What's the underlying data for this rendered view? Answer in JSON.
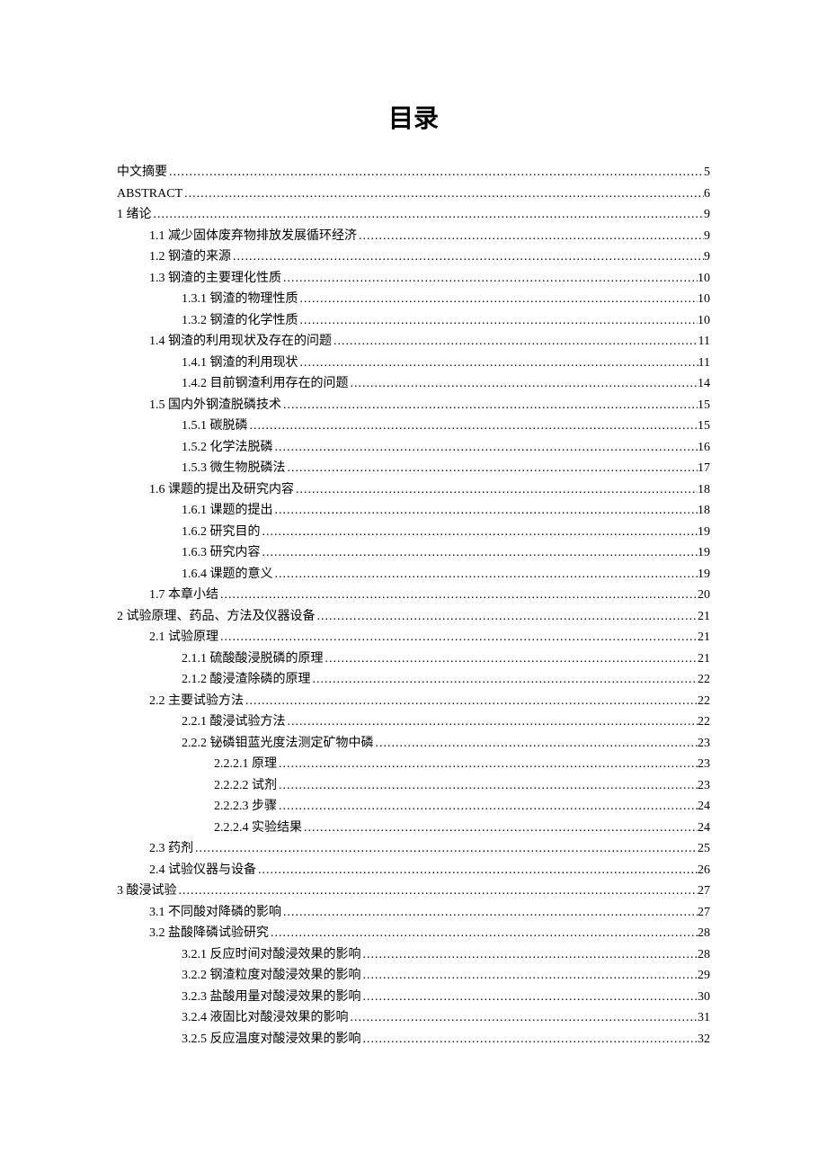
{
  "title": "目录",
  "text_color": "#000000",
  "background_color": "#ffffff",
  "title_fontsize": 28,
  "entry_fontsize": 14,
  "line_height": 23.5,
  "entries": [
    {
      "level": 0,
      "label": "中文摘要",
      "page": "5"
    },
    {
      "level": 0,
      "label": "ABSTRACT",
      "page": "6"
    },
    {
      "level": 0,
      "label": "1  绪论",
      "page": "9"
    },
    {
      "level": 1,
      "label": "1.1  减少固体废弃物排放发展循环经济",
      "page": "9"
    },
    {
      "level": 1,
      "label": "1.2  钢渣的来源",
      "page": "9"
    },
    {
      "level": 1,
      "label": "1.3  钢渣的主要理化性质",
      "page": "10"
    },
    {
      "level": 2,
      "label": "1.3.1  钢渣的物理性质",
      "page": "10"
    },
    {
      "level": 2,
      "label": "1.3.2  钢渣的化学性质",
      "page": "10"
    },
    {
      "level": 1,
      "label": "1.4  钢渣的利用现状及存在的问题",
      "page": "11"
    },
    {
      "level": 2,
      "label": "1.4.1  钢渣的利用现状",
      "page": "11"
    },
    {
      "level": 2,
      "label": "1.4.2  目前钢渣利用存在的问题",
      "page": "14"
    },
    {
      "level": 1,
      "label": "1.5  国内外钢渣脱磷技术",
      "page": "15"
    },
    {
      "level": 2,
      "label": "1.5.1  碳脱磷",
      "page": "15"
    },
    {
      "level": 2,
      "label": "1.5.2  化学法脱磷",
      "page": "16"
    },
    {
      "level": 2,
      "label": "1.5.3  微生物脱磷法",
      "page": "17"
    },
    {
      "level": 1,
      "label": "1.6   课题的提出及研究内容",
      "page": "18"
    },
    {
      "level": 2,
      "label": "1.6.1  课题的提出",
      "page": "18"
    },
    {
      "level": 2,
      "label": "1.6.2  研究目的",
      "page": "19"
    },
    {
      "level": 2,
      "label": "1.6.3  研究内容",
      "page": "19"
    },
    {
      "level": 2,
      "label": "1.6.4  课题的意义",
      "page": "19"
    },
    {
      "level": 1,
      "label": "1.7  本章小结",
      "page": "20"
    },
    {
      "level": 0,
      "label": "2  试验原理、药品、方法及仪器设备",
      "page": "21"
    },
    {
      "level": 1,
      "label": "2.1  试验原理",
      "page": "21"
    },
    {
      "level": 2,
      "label": "2.1.1  硫酸酸浸脱磷的原理",
      "page": "21"
    },
    {
      "level": 2,
      "label": "2.1.2  酸浸渣除磷的原理",
      "page": "22"
    },
    {
      "level": 1,
      "label": "2.2  主要试验方法",
      "page": "22"
    },
    {
      "level": 2,
      "label": "2.2.1  酸浸试验方法",
      "page": "22"
    },
    {
      "level": 2,
      "label": "2.2.2  铋磷钼蓝光度法测定矿物中磷",
      "page": "23"
    },
    {
      "level": 3,
      "label": "2.2.2.1  原理",
      "page": "23"
    },
    {
      "level": 3,
      "label": "2.2.2.2  试剂",
      "page": "23"
    },
    {
      "level": 3,
      "label": "2.2.2.3  步骤",
      "page": "24"
    },
    {
      "level": 3,
      "label": "2.2.2.4  实验结果",
      "page": "24"
    },
    {
      "level": 1,
      "label": "2.3  药剂",
      "page": "25"
    },
    {
      "level": 1,
      "label": "2.4  试验仪器与设备",
      "page": "26"
    },
    {
      "level": 0,
      "label": "3  酸浸试验",
      "page": "27"
    },
    {
      "level": 1,
      "label": "3.1 不同酸对降磷的影响",
      "page": "27"
    },
    {
      "level": 1,
      "label": "3.2  盐酸降磷试验研究",
      "page": "28"
    },
    {
      "level": 2,
      "label": "3.2.1  反应时间对酸浸效果的影响",
      "page": "28"
    },
    {
      "level": 2,
      "label": "3.2.2  钢渣粒度对酸浸效果的影响",
      "page": "29"
    },
    {
      "level": 2,
      "label": "3.2.3  盐酸用量对酸浸效果的影响",
      "page": "30"
    },
    {
      "level": 2,
      "label": "3.2.4  液固比对酸浸效果的影响",
      "page": "31"
    },
    {
      "level": 2,
      "label": "3.2.5  反应温度对酸浸效果的影响",
      "page": "32"
    }
  ]
}
